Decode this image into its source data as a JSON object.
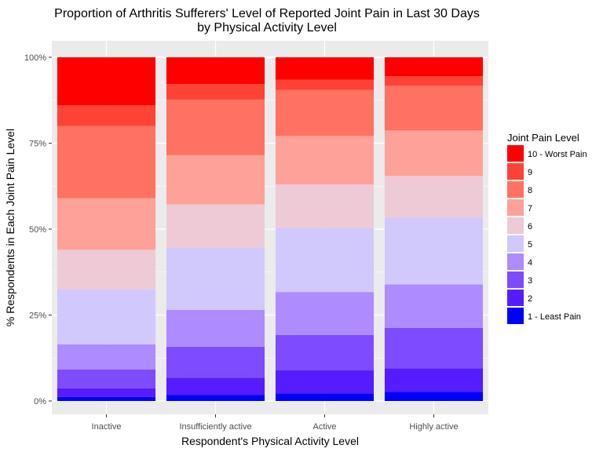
{
  "chart_data": {
    "type": "bar",
    "stacked": true,
    "title_lines": [
      "Proportion of Arthritis Sufferers' Level of Reported Joint Pain in Last 30 Days",
      "by Physical Activity Level"
    ],
    "xlabel": "Respondent's Physical Activity Level",
    "ylabel": "% Respondents in Each Joint Pain Level",
    "ylim": [
      0,
      1
    ],
    "y_ticks": [
      0,
      0.25,
      0.5,
      0.75,
      1.0
    ],
    "y_tick_labels": [
      "0%",
      "25%",
      "50%",
      "75%",
      "100%"
    ],
    "grid": true,
    "legend_position": "right",
    "legend_title": "Joint Pain Level",
    "categories": [
      "Inactive",
      "Insufficiently active",
      "Active",
      "Highly active"
    ],
    "series": [
      {
        "name": "1 - Least Pain",
        "color": "#0000FF",
        "values": [
          0.012,
          0.018,
          0.022,
          0.027
        ]
      },
      {
        "name": "2",
        "color": "#551CFF",
        "values": [
          0.025,
          0.05,
          0.067,
          0.068
        ]
      },
      {
        "name": "3",
        "color": "#7F4BFF",
        "values": [
          0.055,
          0.09,
          0.103,
          0.118
        ]
      },
      {
        "name": "4",
        "color": "#AE8BFF",
        "values": [
          0.073,
          0.107,
          0.125,
          0.126
        ]
      },
      {
        "name": "5",
        "color": "#D1C8FC",
        "values": [
          0.16,
          0.18,
          0.186,
          0.195
        ]
      },
      {
        "name": "6",
        "color": "#EDCAD6",
        "values": [
          0.115,
          0.127,
          0.127,
          0.121
        ]
      },
      {
        "name": "7",
        "color": "#FEA198",
        "values": [
          0.15,
          0.143,
          0.141,
          0.132
        ]
      },
      {
        "name": "8",
        "color": "#FF7161",
        "values": [
          0.21,
          0.162,
          0.134,
          0.13
        ]
      },
      {
        "name": "9",
        "color": "#FF4236",
        "values": [
          0.06,
          0.045,
          0.03,
          0.028
        ]
      },
      {
        "name": "10 - Worst Pain",
        "color": "#FF0000",
        "values": [
          0.14,
          0.078,
          0.065,
          0.055
        ]
      }
    ],
    "legend_order": [
      "10 - Worst Pain",
      "9",
      "8",
      "7",
      "6",
      "5",
      "4",
      "3",
      "2",
      "1 - Least Pain"
    ],
    "panel_background": "#EBEBEB",
    "grid_color": "#FFFFFF"
  }
}
